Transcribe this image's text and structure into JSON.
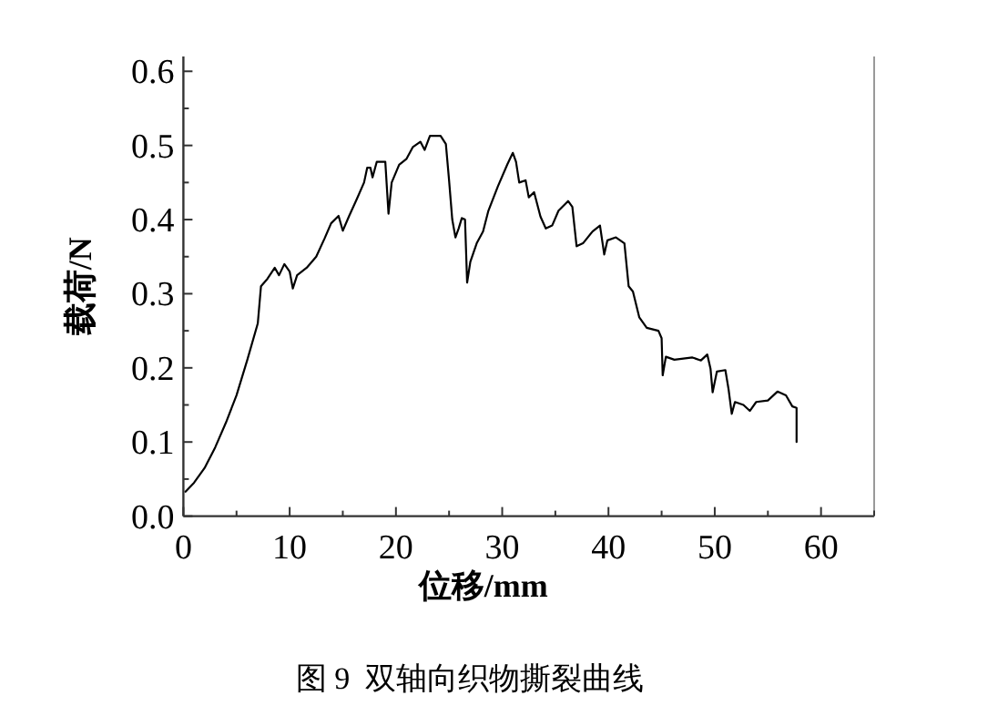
{
  "chart_data": {
    "type": "line",
    "xlabel": "位移/mm",
    "ylabel": "载荷/N",
    "annotations": [
      "图 9  双轴向织物撕裂曲线"
    ],
    "xlim": [
      0,
      65
    ],
    "ylim": [
      0,
      0.62
    ],
    "xticks": [
      0,
      10,
      20,
      30,
      40,
      50,
      60
    ],
    "yticks": [
      {
        "value": 0,
        "label": "0.0"
      },
      0.1,
      0.2,
      0.3,
      0.4,
      0.5,
      0.6
    ],
    "grid": false,
    "marker": "none",
    "line_style": "solid",
    "series": [
      {
        "color": "#000000",
        "x": [
          0.2,
          1,
          2,
          3,
          4,
          5,
          6,
          7,
          7.3,
          7.9,
          8.6,
          9.0,
          9.5,
          10,
          10.3,
          10.7,
          11.6,
          12.5,
          13.3,
          13.9,
          14.6,
          15,
          15.6,
          16.3,
          17,
          17.3,
          17.6,
          17.8,
          18.2,
          19,
          19.3,
          19.6,
          20.3,
          21,
          21.6,
          22.3,
          22.7,
          23.2,
          24.2,
          24.7,
          25,
          25.3,
          25.6,
          25.9,
          26.2,
          26.5,
          26.7,
          27,
          27.6,
          28.2,
          28.7,
          29.6,
          30.5,
          31,
          31.3,
          31.6,
          32.2,
          32.5,
          33,
          33.6,
          34.1,
          34.7,
          35.3,
          36.2,
          36.6,
          37,
          37.6,
          38.5,
          39.2,
          39.6,
          39.9,
          40.7,
          41.5,
          41.9,
          42.3,
          42.9,
          43.6,
          44.7,
          45,
          45.1,
          45.4,
          46.2,
          47.9,
          48.7,
          49.3,
          49.6,
          49.8,
          50.2,
          51,
          51.3,
          51.6,
          51.9,
          52.7,
          53.3,
          53.9,
          55,
          55.9,
          56.7,
          57.3,
          57.7,
          57.7
        ],
        "values": [
          0.033,
          0.045,
          0.065,
          0.093,
          0.126,
          0.163,
          0.21,
          0.26,
          0.31,
          0.32,
          0.335,
          0.325,
          0.34,
          0.33,
          0.307,
          0.325,
          0.335,
          0.35,
          0.375,
          0.395,
          0.405,
          0.385,
          0.405,
          0.427,
          0.45,
          0.47,
          0.47,
          0.457,
          0.478,
          0.478,
          0.408,
          0.45,
          0.474,
          0.482,
          0.498,
          0.505,
          0.494,
          0.513,
          0.513,
          0.502,
          0.453,
          0.4,
          0.376,
          0.388,
          0.402,
          0.4,
          0.315,
          0.343,
          0.368,
          0.384,
          0.412,
          0.445,
          0.475,
          0.49,
          0.478,
          0.45,
          0.453,
          0.43,
          0.437,
          0.404,
          0.388,
          0.392,
          0.412,
          0.425,
          0.417,
          0.364,
          0.368,
          0.384,
          0.392,
          0.353,
          0.372,
          0.376,
          0.368,
          0.31,
          0.303,
          0.268,
          0.254,
          0.25,
          0.24,
          0.19,
          0.215,
          0.211,
          0.214,
          0.21,
          0.218,
          0.199,
          0.167,
          0.195,
          0.197,
          0.171,
          0.138,
          0.154,
          0.15,
          0.142,
          0.154,
          0.156,
          0.168,
          0.163,
          0.148,
          0.146,
          0.1
        ]
      }
    ]
  }
}
